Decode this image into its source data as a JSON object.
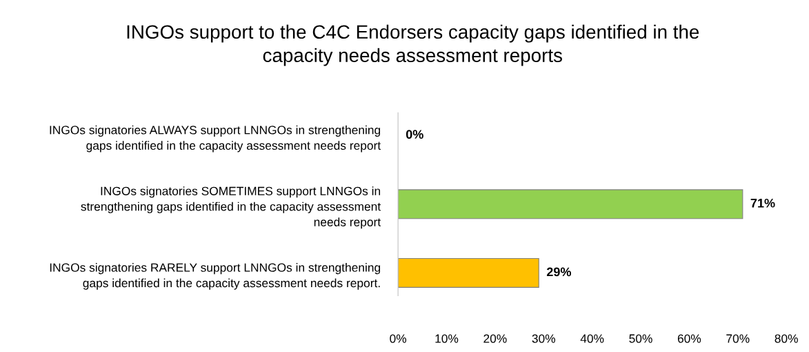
{
  "chart_data": {
    "type": "bar",
    "orientation": "horizontal",
    "title": "INGOs support to the C4C Endorsers capacity gaps identified in the\ncapacity needs assessment reports",
    "categories": [
      "INGOs signatories ALWAYS support LNNGOs in strengthening\ngaps identified in the capacity assessment needs report",
      "INGOs signatories SOMETIMES support LNNGOs in\nstrengthening gaps identified in the capacity assessment\nneeds report",
      "INGOs signatories RARELY support LNNGOs in strengthening\ngaps identified in the capacity assessment needs report."
    ],
    "values": [
      0,
      71,
      29
    ],
    "colors": [
      "#92d050",
      "#92d050",
      "#ffc000"
    ],
    "value_labels": [
      "0%",
      "71%",
      "29%"
    ],
    "xlim": [
      0,
      80
    ],
    "xticks": [
      {
        "value": 0,
        "label": "0%"
      },
      {
        "value": 10,
        "label": "10%"
      },
      {
        "value": 20,
        "label": "20%"
      },
      {
        "value": 30,
        "label": "30%"
      },
      {
        "value": 40,
        "label": "40%"
      },
      {
        "value": 50,
        "label": "50%"
      },
      {
        "value": 60,
        "label": "60%"
      },
      {
        "value": 70,
        "label": "70%"
      },
      {
        "value": 80,
        "label": "80%"
      }
    ],
    "grid": false,
    "legend": false
  }
}
